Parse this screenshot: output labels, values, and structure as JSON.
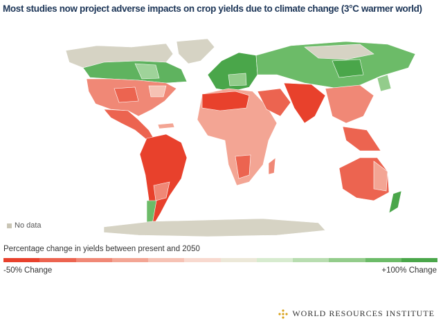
{
  "title": "Most studies now project adverse impacts on crop yields due to climate change (3°C warmer world)",
  "no_data_label": "No data",
  "legend": {
    "title": "Percentage change in yields between present and 2050",
    "low_label": "-50% Change",
    "high_label": "+100% Change",
    "colors": [
      "#e8412c",
      "#ec6450",
      "#f08876",
      "#f3a594",
      "#f6c2b4",
      "#f8d9cf",
      "#ece8d8",
      "#d7ebcf",
      "#b8ddb0",
      "#93cc8b",
      "#6cbb68",
      "#4aa64a"
    ]
  },
  "source": "WORLD RESOURCES INSTITUTE"
}
